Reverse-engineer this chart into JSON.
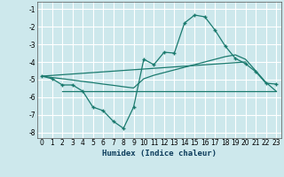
{
  "xlabel": "Humidex (Indice chaleur)",
  "ylabel": "",
  "background_color": "#cde8ec",
  "grid_color": "#ffffff",
  "line_color": "#1a7a6e",
  "xlim": [
    -0.5,
    23.5
  ],
  "ylim": [
    -8.3,
    -0.6
  ],
  "yticks": [
    -8,
    -7,
    -6,
    -5,
    -4,
    -3,
    -2,
    -1
  ],
  "xticks": [
    0,
    1,
    2,
    3,
    4,
    5,
    6,
    7,
    8,
    9,
    10,
    11,
    12,
    13,
    14,
    15,
    16,
    17,
    18,
    19,
    20,
    21,
    22,
    23
  ],
  "line1_x": [
    0,
    1,
    2,
    3,
    4,
    5,
    6,
    7,
    8,
    9,
    10,
    11,
    12,
    13,
    14,
    15,
    16,
    17,
    18,
    19,
    20,
    21,
    22,
    23
  ],
  "line1_y": [
    -4.8,
    -4.95,
    -5.3,
    -5.3,
    -5.65,
    -6.55,
    -6.75,
    -7.35,
    -7.75,
    -6.55,
    -3.85,
    -4.15,
    -3.45,
    -3.5,
    -1.8,
    -1.35,
    -1.45,
    -2.2,
    -3.1,
    -3.8,
    -4.1,
    -4.55,
    -5.2,
    -5.25
  ],
  "line2_x": [
    2,
    23
  ],
  "line2_y": [
    -5.65,
    -5.65
  ],
  "line3_x": [
    0,
    1,
    2,
    3,
    4,
    5,
    6,
    7,
    8,
    9,
    10,
    11,
    12,
    13,
    14,
    15,
    16,
    17,
    18,
    19,
    20,
    21,
    22,
    23
  ],
  "line3_y": [
    -4.8,
    -4.88,
    -4.95,
    -5.02,
    -5.1,
    -5.17,
    -5.25,
    -5.32,
    -5.4,
    -5.47,
    -4.95,
    -4.75,
    -4.6,
    -4.45,
    -4.3,
    -4.15,
    -4.0,
    -3.85,
    -3.7,
    -3.6,
    -3.85,
    -4.5,
    -5.15,
    -5.65
  ],
  "line4_x": [
    0,
    20
  ],
  "line4_y": [
    -4.8,
    -4.0
  ]
}
